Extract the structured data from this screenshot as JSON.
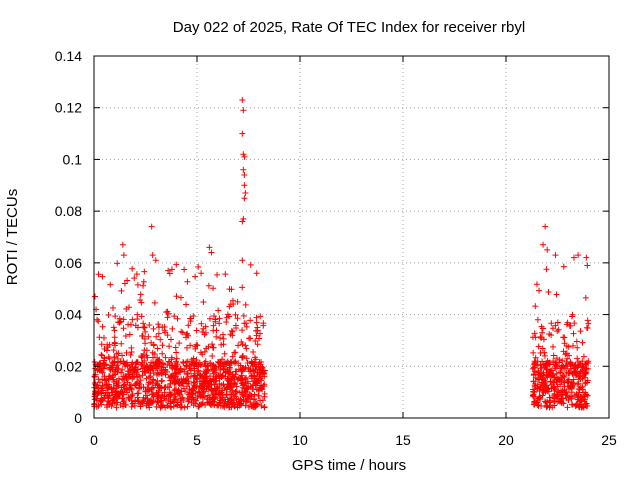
{
  "chart_data": {
    "type": "scatter",
    "title": "Day 022 of 2025, Rate Of TEC Index for receiver rbyl",
    "xlabel": "GPS time / hours",
    "ylabel": "ROTI / TECUs",
    "xlim": [
      0,
      25
    ],
    "ylim": [
      0,
      0.14
    ],
    "xticks": [
      "0",
      "5",
      "10",
      "15",
      "20",
      "25"
    ],
    "yticks": [
      "0",
      "0.02",
      "0.04",
      "0.06",
      "0.08",
      "0.1",
      "0.12",
      "0.14"
    ],
    "grid": true,
    "marker": "+",
    "color": "#ff0000",
    "series": [
      {
        "name": "ROTI",
        "segments": [
          {
            "x_start": 0.0,
            "x_end": 8.3
          },
          {
            "x_start": 21.3,
            "x_end": 24.0
          }
        ],
        "typical_range": [
          0.004,
          0.022
        ],
        "notable_points": [
          {
            "x": 0.05,
            "y": 0.047
          },
          {
            "x": 0.1,
            "y": 0.042
          },
          {
            "x": 0.15,
            "y": 0.038
          },
          {
            "x": 1.4,
            "y": 0.067
          },
          {
            "x": 1.45,
            "y": 0.063
          },
          {
            "x": 1.5,
            "y": 0.052
          },
          {
            "x": 2.8,
            "y": 0.074
          },
          {
            "x": 2.85,
            "y": 0.063
          },
          {
            "x": 3.0,
            "y": 0.061
          },
          {
            "x": 3.6,
            "y": 0.057
          },
          {
            "x": 5.2,
            "y": 0.056
          },
          {
            "x": 5.6,
            "y": 0.066
          },
          {
            "x": 5.7,
            "y": 0.064
          },
          {
            "x": 7.2,
            "y": 0.123
          },
          {
            "x": 7.25,
            "y": 0.119
          },
          {
            "x": 7.2,
            "y": 0.11
          },
          {
            "x": 7.25,
            "y": 0.102
          },
          {
            "x": 7.3,
            "y": 0.101
          },
          {
            "x": 7.25,
            "y": 0.096
          },
          {
            "x": 7.3,
            "y": 0.094
          },
          {
            "x": 7.3,
            "y": 0.09
          },
          {
            "x": 7.35,
            "y": 0.087
          },
          {
            "x": 7.3,
            "y": 0.085
          },
          {
            "x": 7.25,
            "y": 0.077
          },
          {
            "x": 7.2,
            "y": 0.076
          },
          {
            "x": 7.2,
            "y": 0.061
          },
          {
            "x": 7.9,
            "y": 0.056
          },
          {
            "x": 21.8,
            "y": 0.067
          },
          {
            "x": 21.9,
            "y": 0.074
          },
          {
            "x": 22.0,
            "y": 0.065
          },
          {
            "x": 22.4,
            "y": 0.063
          },
          {
            "x": 23.3,
            "y": 0.062
          },
          {
            "x": 23.5,
            "y": 0.063
          },
          {
            "x": 23.9,
            "y": 0.062
          },
          {
            "x": 23.95,
            "y": 0.059
          }
        ]
      }
    ]
  }
}
